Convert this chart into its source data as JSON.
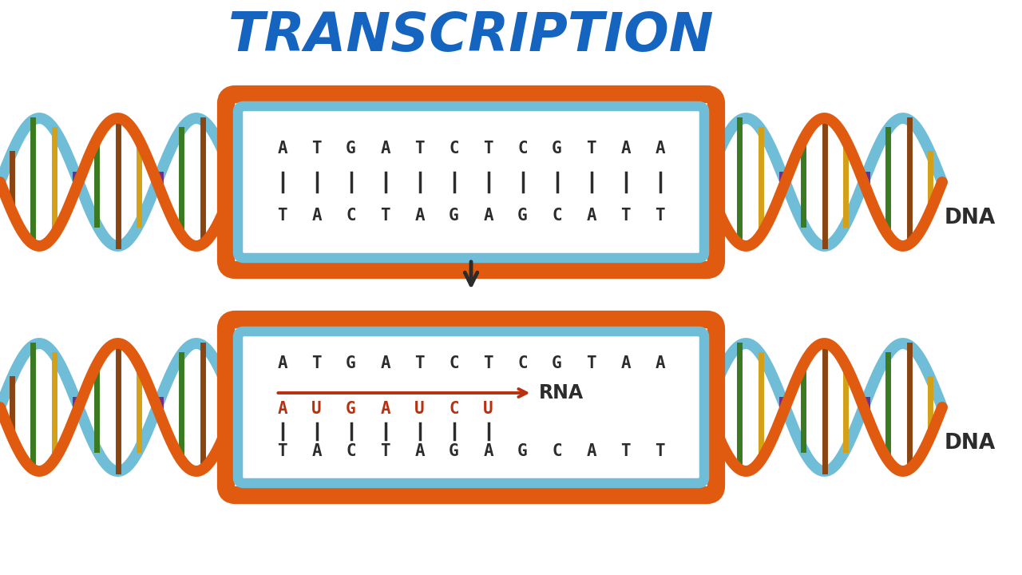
{
  "title": "TRANSCRIPTION",
  "title_color": "#1565C0",
  "title_fontsize": 48,
  "bg_color": "#FFFFFF",
  "dna_top_strand1": "ATGATCTCGTAA",
  "dna_top_strand2": "TACTAGAGCATT",
  "rna_strand": "AUGAUCU",
  "dna_label": "DNA",
  "rna_label": "RNA",
  "strand_color_orange": "#E05A10",
  "strand_color_blue": "#70BDD8",
  "text_color_dark": "#2C2C2C",
  "text_color_rna": "#B83010",
  "arrow_color": "#1A1A1A",
  "bond_color": "#1A1A1A",
  "rung_colors": [
    "#8B4513",
    "#3A7A20",
    "#D4A017",
    "#6A3090",
    "#3A7A20",
    "#8B4513",
    "#D4A017",
    "#6A3090",
    "#3A7A20",
    "#8B4513",
    "#D4A017",
    "#6A3090"
  ]
}
